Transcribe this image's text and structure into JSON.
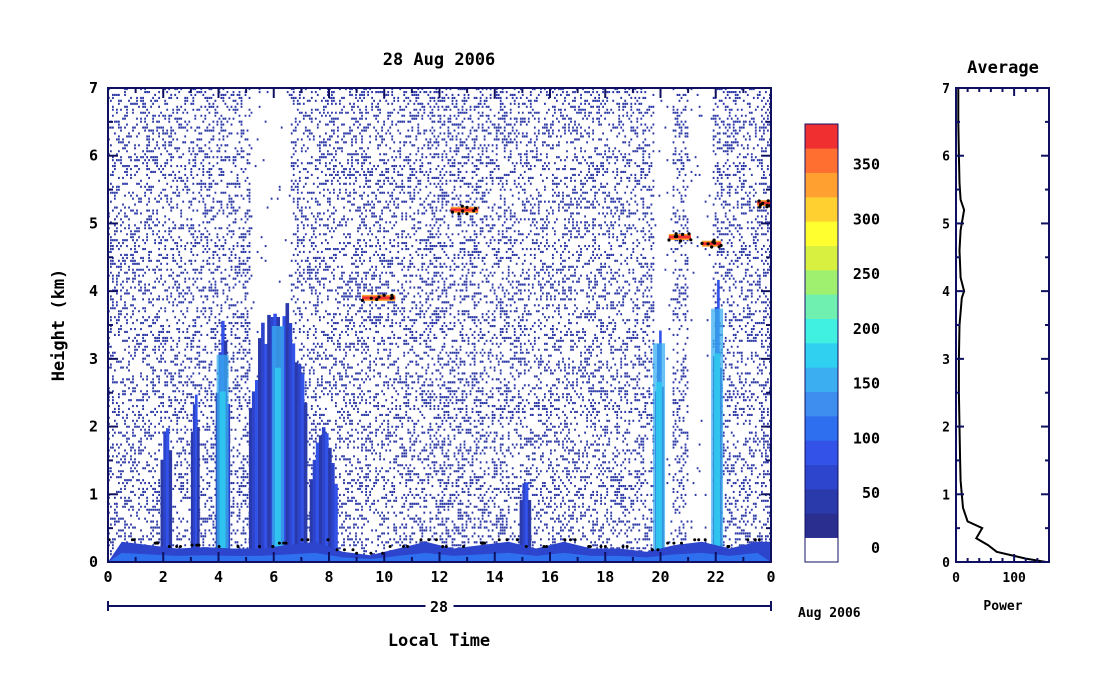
{
  "chart_data": [
    {
      "type": "heatmap",
      "title": "28 Aug 2006",
      "xlabel": "Local Time",
      "ylabel": "Height (km)",
      "x_ticks": [
        "0",
        "2",
        "4",
        "6",
        "8",
        "10",
        "12",
        "14",
        "16",
        "18",
        "20",
        "22",
        "0"
      ],
      "y_ticks": [
        "0",
        "1",
        "2",
        "3",
        "4",
        "5",
        "6",
        "7"
      ],
      "xlim": [
        0,
        24
      ],
      "ylim": [
        0,
        7
      ],
      "date_bar_label": "28",
      "date_bar_suffix": "Aug 2006",
      "colorbar": {
        "labels": [
          "0",
          "50",
          "100",
          "150",
          "200",
          "250",
          "300",
          "350"
        ],
        "range": [
          -25,
          375
        ],
        "colors": [
          "#ffffff",
          "#2a2f8f",
          "#2a3aaa",
          "#2d44cc",
          "#3252e8",
          "#2e6ff0",
          "#3e8ef0",
          "#3aaef0",
          "#30d0f0",
          "#40f0e0",
          "#70f0b0",
          "#a0f070",
          "#d8f040",
          "#ffff30",
          "#ffd030",
          "#ffa030",
          "#ff7030",
          "#f03030"
        ]
      },
      "features": {
        "surface_layer_km": [
          0.3,
          0.25,
          0.2,
          0.22,
          0.2,
          0.2,
          0.25,
          0.3,
          0.15,
          0.1,
          0.2,
          0.3,
          0.2,
          0.25,
          0.3,
          0.2,
          0.3,
          0.2,
          0.2,
          0.15,
          0.25,
          0.3,
          0.2,
          0.3
        ],
        "precipitation_columns": [
          {
            "t0": 5.1,
            "t1": 7.2,
            "top_km": 4.1
          },
          {
            "t0": 3.9,
            "t1": 4.4,
            "top_km": 3.6
          },
          {
            "t0": 1.9,
            "t1": 2.3,
            "top_km": 2.2
          },
          {
            "t0": 3.0,
            "t1": 3.3,
            "top_km": 2.8
          },
          {
            "t0": 7.3,
            "t1": 8.3,
            "top_km": 2.0
          },
          {
            "t0": 14.9,
            "t1": 15.3,
            "top_km": 1.3
          },
          {
            "t0": 19.8,
            "t1": 20.1,
            "top_km": 3.8
          },
          {
            "t0": 21.9,
            "t1": 22.2,
            "top_km": 4.4
          }
        ],
        "cloud_layers": [
          {
            "t0": 9.2,
            "t1": 10.4,
            "h": 3.9
          },
          {
            "t0": 12.4,
            "t1": 13.4,
            "h": 5.2
          },
          {
            "t0": 20.3,
            "t1": 21.1,
            "h": 4.8
          },
          {
            "t0": 21.5,
            "t1": 22.2,
            "h": 4.7
          },
          {
            "t0": 23.5,
            "t1": 24.0,
            "h": 5.3
          }
        ]
      }
    },
    {
      "type": "line",
      "title": "Average",
      "xlabel": "Power",
      "ylabel": "",
      "x_ticks": [
        "0",
        "100"
      ],
      "y_ticks": [
        "0",
        "1",
        "2",
        "3",
        "4",
        "5",
        "6",
        "7"
      ],
      "xlim": [
        0,
        160
      ],
      "ylim": [
        0,
        7
      ],
      "profile": [
        {
          "x": 155,
          "y": 0.0
        },
        {
          "x": 120,
          "y": 0.05
        },
        {
          "x": 70,
          "y": 0.15
        },
        {
          "x": 55,
          "y": 0.25
        },
        {
          "x": 35,
          "y": 0.35
        },
        {
          "x": 45,
          "y": 0.5
        },
        {
          "x": 20,
          "y": 0.6
        },
        {
          "x": 12,
          "y": 0.8
        },
        {
          "x": 10,
          "y": 1.0
        },
        {
          "x": 8,
          "y": 1.2
        },
        {
          "x": 7,
          "y": 1.5
        },
        {
          "x": 6,
          "y": 2.0
        },
        {
          "x": 5,
          "y": 2.5
        },
        {
          "x": 5,
          "y": 3.0
        },
        {
          "x": 6,
          "y": 3.5
        },
        {
          "x": 10,
          "y": 3.9
        },
        {
          "x": 14,
          "y": 4.0
        },
        {
          "x": 8,
          "y": 4.2
        },
        {
          "x": 6,
          "y": 4.6
        },
        {
          "x": 8,
          "y": 4.9
        },
        {
          "x": 14,
          "y": 5.2
        },
        {
          "x": 8,
          "y": 5.35
        },
        {
          "x": 6,
          "y": 5.6
        },
        {
          "x": 5,
          "y": 6.0
        },
        {
          "x": 4,
          "y": 6.5
        },
        {
          "x": 4,
          "y": 7.0
        }
      ]
    }
  ]
}
